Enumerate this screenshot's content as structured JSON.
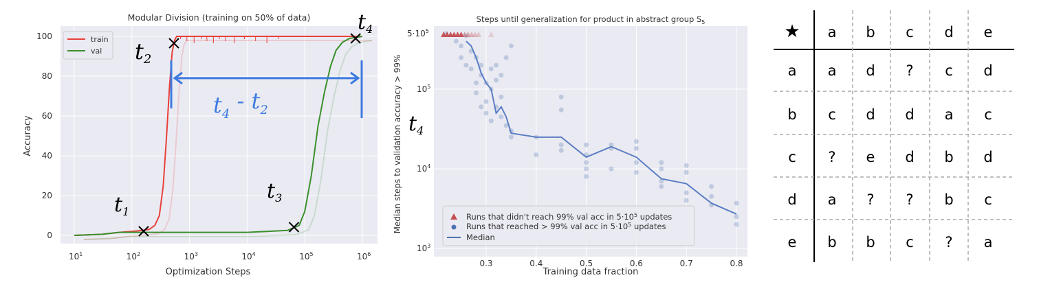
{
  "chart_data": [
    {
      "type": "line",
      "title": "Modular Division (training on 50% of data)",
      "xlabel": "Optimization Steps",
      "ylabel": "Accuracy",
      "xscale": "log",
      "xlim": [
        10,
        1000000
      ],
      "ylim": [
        0,
        100
      ],
      "x_ticks": [
        {
          "base": "10",
          "exp": "1",
          "value": 10
        },
        {
          "base": "10",
          "exp": "2",
          "value": 100
        },
        {
          "base": "10",
          "exp": "3",
          "value": 1000
        },
        {
          "base": "10",
          "exp": "4",
          "value": 10000
        },
        {
          "base": "10",
          "exp": "5",
          "value": 100000
        },
        {
          "base": "10",
          "exp": "6",
          "value": 1000000
        }
      ],
      "y_ticks": [
        "0",
        "20",
        "40",
        "60",
        "80",
        "100"
      ],
      "grid": true,
      "legend_position": "top-left",
      "colors": {
        "train": "#e8413a",
        "val": "#3a8f2c",
        "bg": "#eaeaf2",
        "annotation": "#3d7be0"
      },
      "series": [
        {
          "name": "train",
          "color": "#e8413a",
          "x": [
            10,
            30,
            60,
            100,
            150,
            200,
            250,
            300,
            350,
            400,
            450,
            500,
            550,
            600,
            700,
            1000,
            10000,
            100000,
            1000000
          ],
          "y": [
            0,
            0.5,
            1.5,
            2,
            2.5,
            3,
            5,
            10,
            25,
            50,
            75,
            92,
            98,
            100,
            100,
            100,
            100,
            100,
            100
          ]
        },
        {
          "name": "val",
          "color": "#3a8f2c",
          "x": [
            10,
            30,
            60,
            100,
            200,
            500,
            1000,
            10000,
            50000,
            80000,
            100000,
            130000,
            170000,
            220000,
            280000,
            350000,
            450000,
            600000,
            1000000
          ],
          "y": [
            0,
            0.5,
            1.5,
            1.5,
            1.5,
            1.5,
            1.5,
            1.5,
            2.5,
            5,
            12,
            30,
            55,
            72,
            85,
            93,
            97,
            99,
            100
          ]
        }
      ],
      "annotations": [
        {
          "label": "t",
          "sub": "1",
          "x": 160,
          "y": 3
        },
        {
          "label": "t",
          "sub": "2",
          "x": 600,
          "y": 100
        },
        {
          "label": "t",
          "sub": "3",
          "x": 65000,
          "y": 4
        },
        {
          "label": "t",
          "sub": "4",
          "x": 900000,
          "y": 100
        },
        {
          "label": "t",
          "sub": "4",
          "label2": "t",
          "sub2": "2",
          "between": [
            600,
            1000000
          ],
          "y": 79
        }
      ]
    },
    {
      "type": "scatter",
      "title": "Steps until generalization for product in abstract group S",
      "title_sub": "5",
      "xlabel": "Training data fraction",
      "ylabel": "Median steps to validation accuracy > 99%",
      "side_label": {
        "label": "t",
        "sub": "4"
      },
      "yscale": "log",
      "xlim": [
        0.2,
        0.82
      ],
      "ylim": [
        1000,
        600000
      ],
      "x_ticks": [
        "0.3",
        "0.4",
        "0.5",
        "0.6",
        "0.7",
        "0.8"
      ],
      "y_ticks": [
        {
          "base": "10",
          "exp": "3",
          "value": 1000
        },
        {
          "base": "10",
          "exp": "4",
          "value": 10000
        },
        {
          "base": "10",
          "exp": "5",
          "value": 100000
        },
        {
          "base": "5·10",
          "exp": "5",
          "value": 500000
        }
      ],
      "grid": true,
      "legend_position": "bottom-left",
      "legend": [
        {
          "marker": "triangle",
          "label": "Runs that didn't reach 99% val acc in 5·10",
          "sup": "5",
          "label_after": " updates",
          "color": "#c44e52"
        },
        {
          "marker": "dot",
          "label": "Runs that reached > 99% val acc in 5·10",
          "sup": "5",
          "label_after": " updates",
          "color": "#4c72b0"
        },
        {
          "marker": "line",
          "label": "Median",
          "color": "#4c72b0"
        }
      ],
      "triangles_x": [
        0.215,
        0.222,
        0.229,
        0.236,
        0.243,
        0.25,
        0.257,
        0.264,
        0.271,
        0.278,
        0.285,
        0.31
      ],
      "points": [
        [
          0.22,
          500000
        ],
        [
          0.24,
          400000
        ],
        [
          0.25,
          350000
        ],
        [
          0.25,
          250000
        ],
        [
          0.26,
          470000
        ],
        [
          0.26,
          200000
        ],
        [
          0.27,
          300000
        ],
        [
          0.27,
          180000
        ],
        [
          0.28,
          120000
        ],
        [
          0.28,
          250000
        ],
        [
          0.28,
          90000
        ],
        [
          0.29,
          150000
        ],
        [
          0.29,
          60000
        ],
        [
          0.29,
          200000
        ],
        [
          0.3,
          120000
        ],
        [
          0.3,
          70000
        ],
        [
          0.3,
          50000
        ],
        [
          0.31,
          100000
        ],
        [
          0.31,
          180000
        ],
        [
          0.31,
          40000
        ],
        [
          0.32,
          60000
        ],
        [
          0.32,
          130000
        ],
        [
          0.32,
          200000
        ],
        [
          0.33,
          45000
        ],
        [
          0.33,
          80000
        ],
        [
          0.33,
          150000
        ],
        [
          0.34,
          35000
        ],
        [
          0.34,
          250000
        ],
        [
          0.35,
          30000
        ],
        [
          0.35,
          25000
        ],
        [
          0.35,
          350000
        ],
        [
          0.4,
          25000
        ],
        [
          0.4,
          15000
        ],
        [
          0.45,
          20000
        ],
        [
          0.45,
          80000
        ],
        [
          0.45,
          55000
        ],
        [
          0.45,
          17000
        ],
        [
          0.5,
          12000
        ],
        [
          0.5,
          8000
        ],
        [
          0.5,
          20000
        ],
        [
          0.5,
          10000
        ],
        [
          0.5,
          15000
        ],
        [
          0.55,
          20000
        ],
        [
          0.55,
          10000
        ],
        [
          0.55,
          18000
        ],
        [
          0.6,
          22000
        ],
        [
          0.6,
          12000
        ],
        [
          0.6,
          18000
        ],
        [
          0.6,
          9000
        ],
        [
          0.65,
          10000
        ],
        [
          0.65,
          7000
        ],
        [
          0.65,
          12000
        ],
        [
          0.65,
          6000
        ],
        [
          0.7,
          9000
        ],
        [
          0.7,
          5000
        ],
        [
          0.7,
          11000
        ],
        [
          0.7,
          4000
        ],
        [
          0.75,
          6000
        ],
        [
          0.75,
          3500
        ],
        [
          0.75,
          4500
        ],
        [
          0.8,
          2500
        ],
        [
          0.8,
          3700
        ],
        [
          0.8,
          2000
        ]
      ],
      "median_line": {
        "x": [
          0.26,
          0.27,
          0.28,
          0.29,
          0.3,
          0.31,
          0.32,
          0.33,
          0.34,
          0.35,
          0.4,
          0.45,
          0.5,
          0.55,
          0.6,
          0.65,
          0.7,
          0.75,
          0.8
        ],
        "y": [
          400000,
          350000,
          250000,
          160000,
          120000,
          100000,
          50000,
          60000,
          45000,
          28000,
          25000,
          25000,
          14000,
          19000,
          14000,
          7500,
          6500,
          3700,
          2700
        ]
      }
    },
    {
      "type": "table",
      "corner_symbol": "★",
      "headers": [
        "a",
        "b",
        "c",
        "d",
        "e"
      ],
      "rows": [
        {
          "label": "a",
          "cells": [
            "a",
            "d",
            "?",
            "c",
            "d"
          ]
        },
        {
          "label": "b",
          "cells": [
            "c",
            "d",
            "d",
            "a",
            "c"
          ]
        },
        {
          "label": "c",
          "cells": [
            "?",
            "e",
            "d",
            "b",
            "d"
          ]
        },
        {
          "label": "d",
          "cells": [
            "a",
            "?",
            "?",
            "b",
            "c"
          ]
        },
        {
          "label": "e",
          "cells": [
            "b",
            "b",
            "c",
            "?",
            "a"
          ]
        }
      ]
    }
  ]
}
